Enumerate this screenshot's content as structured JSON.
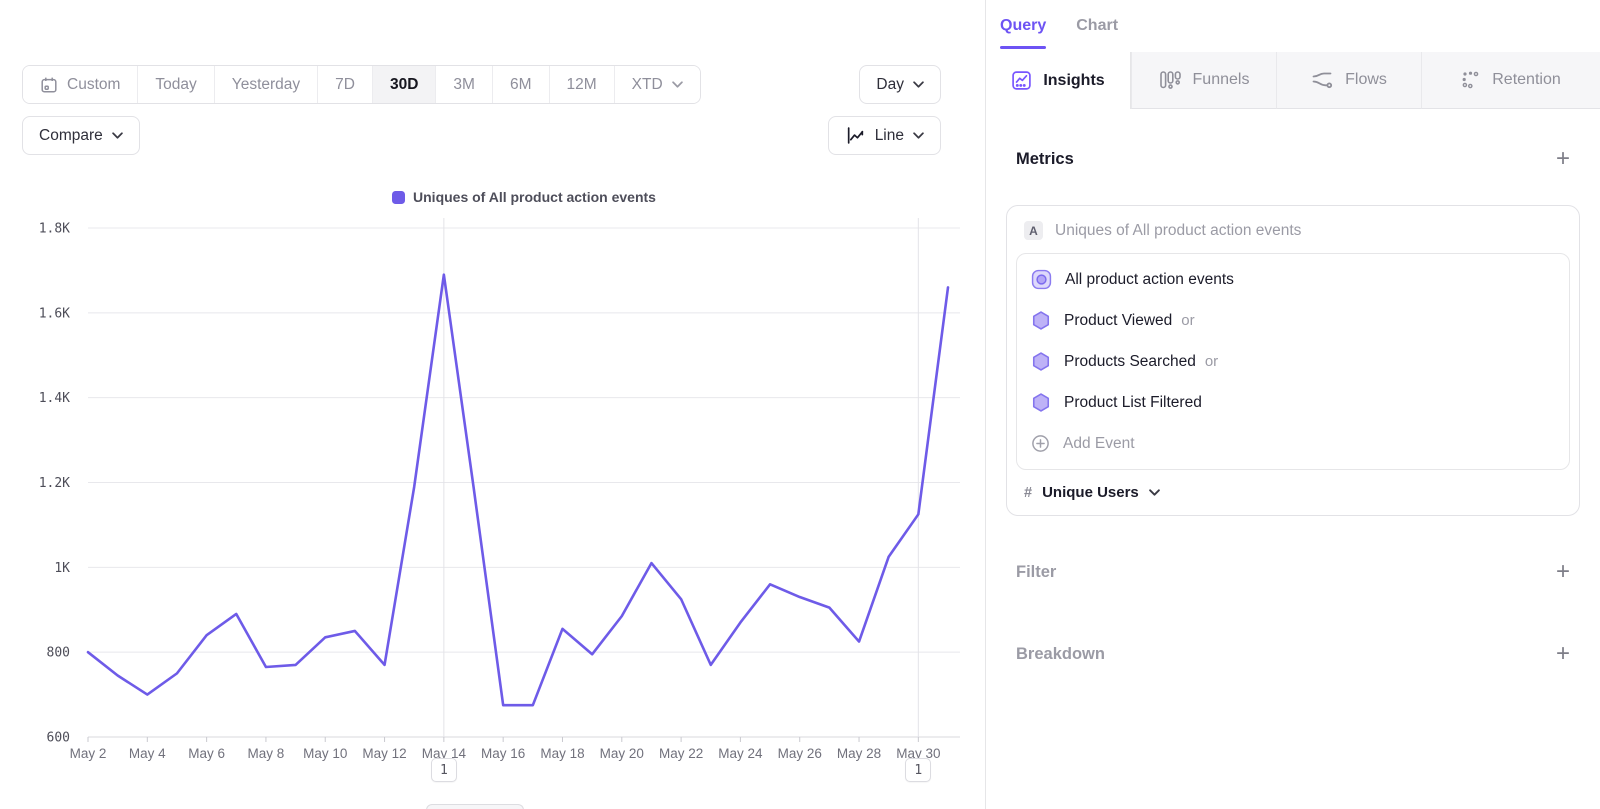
{
  "toolbar": {
    "ranges": [
      {
        "label": "Custom"
      },
      {
        "label": "Today"
      },
      {
        "label": "Yesterday"
      },
      {
        "label": "7D"
      },
      {
        "label": "30D"
      },
      {
        "label": "3M"
      },
      {
        "label": "6M"
      },
      {
        "label": "12M"
      },
      {
        "label": "XTD"
      }
    ],
    "active_range": "30D",
    "granularity": "Day",
    "compare_label": "Compare",
    "chart_type": "Line"
  },
  "legend": {
    "label": "Uniques of All product action events",
    "color": "#6e5be8"
  },
  "chart_data": {
    "type": "line",
    "title": "Uniques of All product action events",
    "x": [
      "May 2",
      "May 3",
      "May 4",
      "May 5",
      "May 6",
      "May 7",
      "May 8",
      "May 9",
      "May 10",
      "May 11",
      "May 12",
      "May 13",
      "May 14",
      "May 15",
      "May 16",
      "May 17",
      "May 18",
      "May 19",
      "May 20",
      "May 21",
      "May 22",
      "May 23",
      "May 24",
      "May 25",
      "May 26",
      "May 27",
      "May 28",
      "May 29",
      "May 30",
      "May 31"
    ],
    "values": [
      800,
      745,
      700,
      750,
      840,
      890,
      765,
      770,
      835,
      850,
      770,
      1190,
      1690,
      1190,
      675,
      675,
      855,
      795,
      885,
      1010,
      925,
      770,
      870,
      960,
      930,
      905,
      825,
      1025,
      1125,
      1660
    ],
    "ylim": [
      600,
      1800
    ],
    "yticks": [
      600,
      800,
      1000,
      1200,
      1400,
      1600,
      1800
    ],
    "ytick_labels": [
      "600",
      "800",
      "1K",
      "1.2K",
      "1.4K",
      "1.6K",
      "1.8K"
    ],
    "xtick_indices": [
      0,
      2,
      4,
      6,
      8,
      10,
      12,
      14,
      16,
      18,
      20,
      22,
      24,
      26,
      28
    ],
    "annotation_indices": [
      12,
      28
    ],
    "line_color": "#6e5be8",
    "grid": true,
    "legend_position": "top"
  },
  "annotations": [
    {
      "date": "May 14",
      "label": "1"
    },
    {
      "date": "May 30",
      "label": "1"
    }
  ],
  "panel": {
    "tabs": {
      "query": "Query",
      "chart": "Chart"
    },
    "report_tabs": [
      {
        "label": "Insights"
      },
      {
        "label": "Funnels"
      },
      {
        "label": "Flows"
      },
      {
        "label": "Retention"
      }
    ],
    "metrics": {
      "title": "Metrics",
      "add": "+",
      "series_badge": "A",
      "series_title": "Uniques of All product action events",
      "events": [
        {
          "label": "All product action events"
        },
        {
          "label": "Product Viewed",
          "suffix": "or"
        },
        {
          "label": "Products Searched",
          "suffix": "or"
        },
        {
          "label": "Product List Filtered"
        },
        {
          "label": "Add Event"
        }
      ],
      "aggregation": {
        "symbol": "#",
        "label": "Unique Users"
      }
    },
    "filter": {
      "title": "Filter",
      "add": "+"
    },
    "breakdown": {
      "title": "Breakdown",
      "add": "+"
    }
  }
}
